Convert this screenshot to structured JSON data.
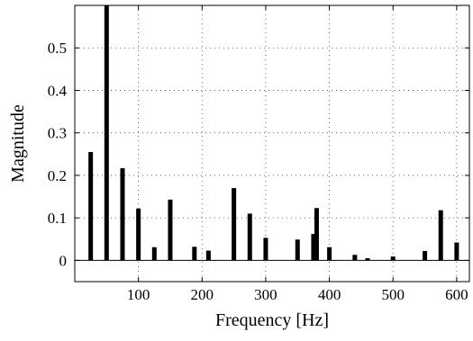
{
  "chart_data": {
    "type": "bar",
    "xlabel": "Frequency [Hz]",
    "ylabel": "Magnitude",
    "xlim": [
      0,
      620
    ],
    "ylim": [
      -0.05,
      0.6
    ],
    "xticks": [
      100,
      200,
      300,
      400,
      500,
      600
    ],
    "yticks": [
      0,
      0.1,
      0.2,
      0.3,
      0.4,
      0.5
    ],
    "xtick_labels": [
      "100",
      "200",
      "300",
      "400",
      "500",
      "600"
    ],
    "ytick_labels": [
      "0",
      "0.1",
      "0.2",
      "0.3",
      "0.4",
      "0.5"
    ],
    "grid": true,
    "baseline": 0,
    "bar_color": "#000000",
    "x": [
      25,
      50,
      75,
      100,
      125,
      150,
      188,
      210,
      250,
      275,
      300,
      350,
      375,
      380,
      400,
      440,
      460,
      500,
      550,
      575,
      600
    ],
    "values": [
      0.255,
      0.6,
      0.217,
      0.122,
      0.031,
      0.143,
      0.032,
      0.023,
      0.17,
      0.11,
      0.053,
      0.049,
      0.062,
      0.123,
      0.031,
      0.013,
      0.005,
      0.009,
      0.022,
      0.118,
      0.042
    ]
  }
}
